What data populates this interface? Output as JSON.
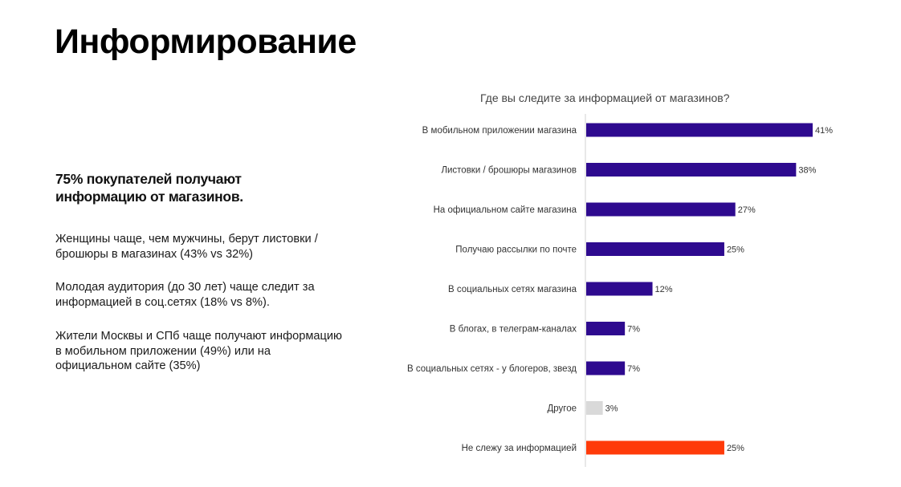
{
  "page": {
    "title": "Информирование",
    "lead": "75% покупателей получают информацию от магазинов.",
    "notes": [
      "Женщины чаще, чем мужчины, берут листовки / брошюры в магазинах (43% vs 32%)",
      "Молодая аудитория (до 30 лет) чаще следит за информацией в соц.сетях (18% vs 8%).",
      "Жители Москвы и СПб чаще получают информацию в мобильном приложении (49%) или на официальном сайте (35%)"
    ]
  },
  "chart_data": {
    "type": "bar",
    "orientation": "horizontal",
    "title": "Где вы следите за информацией от магазинов?",
    "categories": [
      "В мобильном приложении магазина",
      "Листовки / брошюры магазинов",
      "На официальном сайте магазина",
      "Получаю рассылки по почте",
      "В социальных сетях магазина",
      "В блогах, в телеграм-каналах",
      "В социальных сетях - у блогеров, звезд",
      "Другое",
      "Не слежу за информацией"
    ],
    "values": [
      41,
      38,
      27,
      25,
      12,
      7,
      7,
      3,
      25
    ],
    "value_labels": [
      "41%",
      "38%",
      "27%",
      "25%",
      "12%",
      "7%",
      "7%",
      "3%",
      "25%"
    ],
    "unit": "%",
    "xlim": [
      0,
      41
    ],
    "grid": false,
    "legend": "none",
    "colors": [
      "#2e0a8f",
      "#2e0a8f",
      "#2e0a8f",
      "#2e0a8f",
      "#2e0a8f",
      "#2e0a8f",
      "#2e0a8f",
      "#d9d9d9",
      "#ff3b0a"
    ]
  }
}
